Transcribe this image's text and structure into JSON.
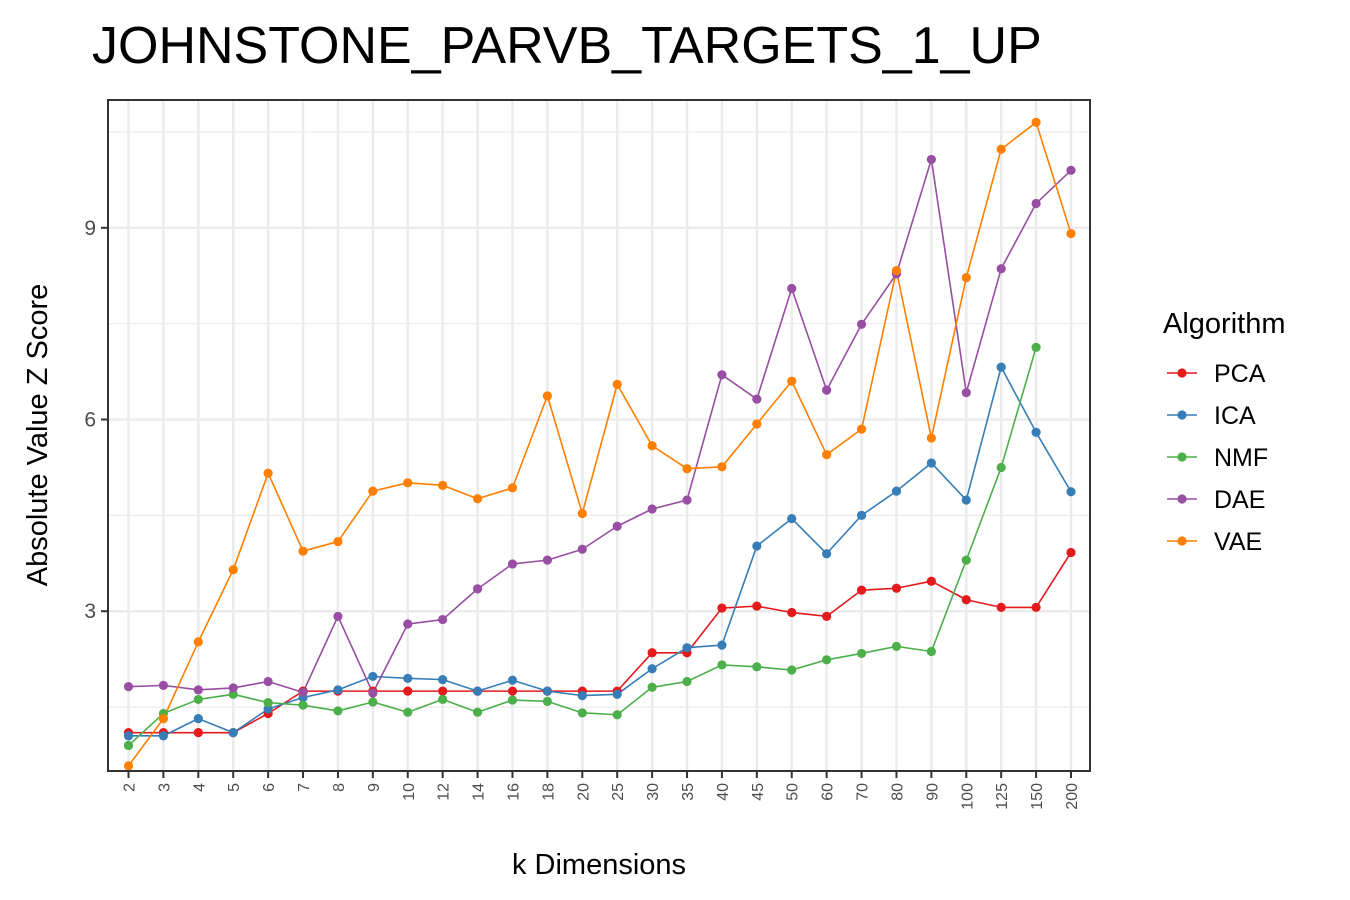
{
  "chart_data": {
    "type": "line",
    "title": "JOHNSTONE_PARVB_TARGETS_1_UP",
    "xlabel": "k Dimensions",
    "ylabel": "Absolute Value Z Score",
    "categories": [
      "2",
      "3",
      "4",
      "5",
      "6",
      "7",
      "8",
      "9",
      "10",
      "12",
      "14",
      "16",
      "18",
      "20",
      "25",
      "30",
      "35",
      "40",
      "45",
      "50",
      "60",
      "70",
      "80",
      "90",
      "100",
      "125",
      "150",
      "200"
    ],
    "yticks": [
      3,
      6,
      9
    ],
    "ylim": [
      0.5,
      11.0
    ],
    "grid": true,
    "legend": {
      "title": "Algorithm",
      "position": "right"
    },
    "series": [
      {
        "name": "PCA",
        "color": "#E41A1C",
        "values": [
          1.1,
          1.1,
          1.1,
          1.1,
          1.4,
          1.75,
          1.75,
          1.75,
          1.75,
          1.75,
          1.75,
          1.75,
          1.75,
          1.75,
          1.75,
          2.35,
          2.35,
          3.05,
          3.08,
          2.98,
          2.92,
          3.33,
          3.36,
          3.47,
          3.18,
          3.06,
          3.06,
          3.92
        ]
      },
      {
        "name": "ICA",
        "color": "#377EB8",
        "values": [
          1.05,
          1.05,
          1.32,
          1.1,
          1.47,
          1.65,
          1.77,
          1.98,
          1.95,
          1.93,
          1.75,
          1.92,
          1.75,
          1.68,
          1.7,
          2.1,
          2.43,
          2.47,
          4.02,
          4.45,
          3.9,
          4.5,
          4.88,
          5.32,
          4.74,
          6.82,
          5.8,
          4.87
        ]
      },
      {
        "name": "NMF",
        "color": "#4DAF4A",
        "values": [
          0.9,
          1.4,
          1.62,
          1.7,
          1.57,
          1.53,
          1.44,
          1.58,
          1.42,
          1.62,
          1.42,
          1.61,
          1.59,
          1.41,
          1.38,
          1.81,
          1.9,
          2.16,
          2.13,
          2.08,
          2.24,
          2.34,
          2.45,
          2.37,
          3.8,
          5.25,
          7.13,
          null
        ]
      },
      {
        "name": "DAE",
        "color": "#984EA3",
        "values": [
          1.82,
          1.84,
          1.77,
          1.8,
          1.9,
          1.73,
          2.92,
          1.72,
          2.8,
          2.87,
          3.35,
          3.74,
          3.8,
          3.97,
          4.33,
          4.6,
          4.74,
          6.7,
          6.32,
          8.05,
          6.46,
          7.49,
          8.28,
          10.07,
          6.42,
          8.36,
          9.38,
          9.9
        ]
      },
      {
        "name": "VAE",
        "color": "#FF7F00",
        "values": [
          0.58,
          1.32,
          2.52,
          3.65,
          5.16,
          3.94,
          4.09,
          4.88,
          5.01,
          4.97,
          4.76,
          4.93,
          6.37,
          4.53,
          6.55,
          5.59,
          5.23,
          5.26,
          5.93,
          6.6,
          5.45,
          5.85,
          8.33,
          5.71,
          8.22,
          10.23,
          10.65,
          8.91
        ]
      }
    ]
  }
}
